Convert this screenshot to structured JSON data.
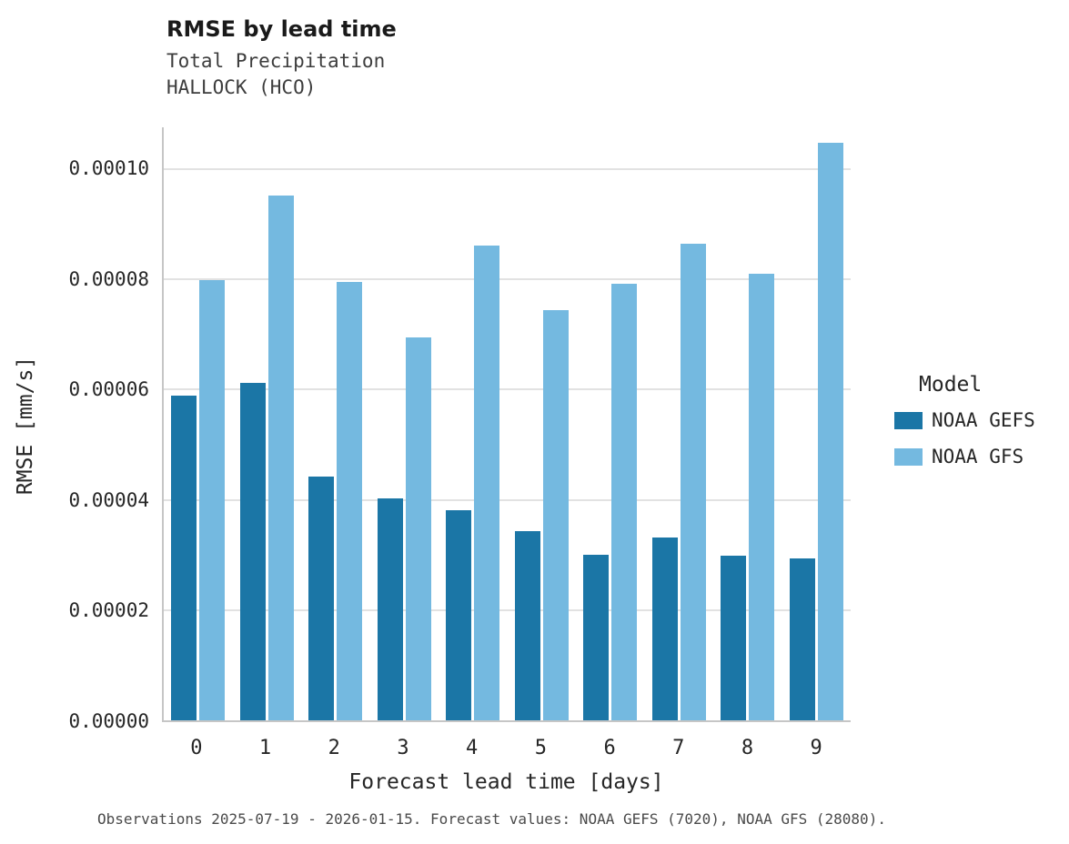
{
  "chart_data": {
    "type": "bar",
    "title": "RMSE by lead time",
    "subtitle_line1": "Total Precipitation",
    "subtitle_line2": "HALLOCK (HCO)",
    "xlabel": "Forecast lead time [days]",
    "ylabel": "RMSE [mm/s]",
    "categories": [
      "0",
      "1",
      "2",
      "3",
      "4",
      "5",
      "6",
      "7",
      "8",
      "9"
    ],
    "series": [
      {
        "name": "NOAA GEFS",
        "color": "#1b76a6",
        "values": [
          5.9e-05,
          6.13e-05,
          4.43e-05,
          4.03e-05,
          3.82e-05,
          3.44e-05,
          3.01e-05,
          3.32e-05,
          2.99e-05,
          2.93e-05
        ]
      },
      {
        "name": "NOAA GFS",
        "color": "#74b9e0",
        "values": [
          7.98e-05,
          9.52e-05,
          7.95e-05,
          6.95e-05,
          8.62e-05,
          7.45e-05,
          7.92e-05,
          8.65e-05,
          8.1e-05,
          0.0001048
        ]
      }
    ],
    "ylim": [
      0,
      0.0001076
    ],
    "yticks": [
      0,
      2e-05,
      4e-05,
      6e-05,
      8e-05,
      0.0001
    ],
    "ytick_labels": [
      "0.00000",
      "0.00002",
      "0.00004",
      "0.00006",
      "0.00008",
      "0.00010"
    ],
    "grid": "horizontal",
    "legend_position": "right",
    "legend_title": "Model",
    "caption": "Observations 2025-07-19 - 2026-01-15. Forecast values: NOAA GEFS (7020), NOAA GFS (28080)."
  }
}
